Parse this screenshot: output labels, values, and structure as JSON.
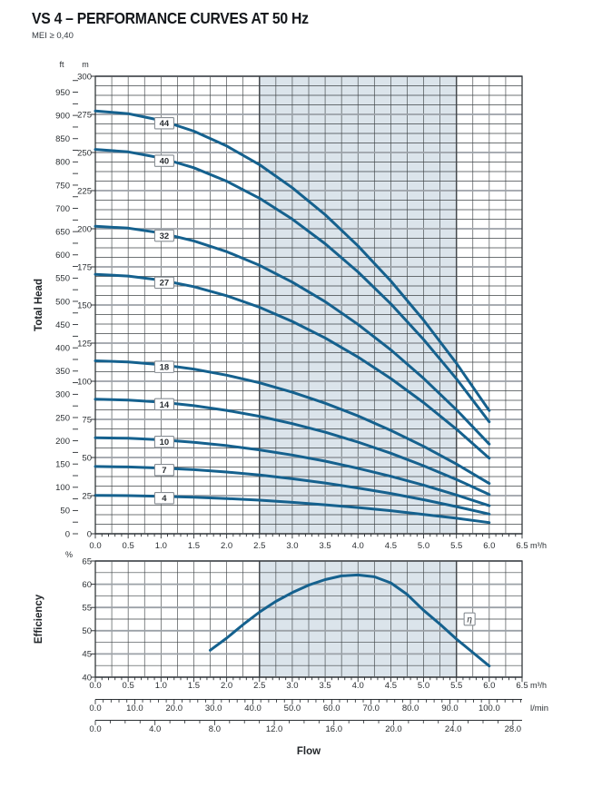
{
  "header": {
    "title": "VS 4 – PERFORMANCE CURVES AT 50 Hz",
    "subtitle": "MEI ≥ 0,40"
  },
  "labels": {
    "ft": "ft",
    "m": "m",
    "percent": "%",
    "total_head": "Total Head",
    "efficiency": "Efficiency",
    "flow": "Flow"
  },
  "colors": {
    "curve": "#15618e",
    "band": "#dbe4eb",
    "grid_minor": "#3f4447",
    "grid_major": "#9ba1a7",
    "band_edge": "#44484c",
    "border": "#34383b",
    "axis_text": "#2b2f33",
    "box_border": "#878d93"
  },
  "chart_data": [
    {
      "name": "total-head-curves",
      "type": "line",
      "ylabel": "Total Head",
      "x_axis": {
        "unit": "m³/h",
        "min": 0,
        "max": 6.5,
        "label_step": 0.5,
        "minor_tick_step": 0.1,
        "tick_labels": [
          "0.0",
          "0.5",
          "1.0",
          "1.5",
          "2.0",
          "2.5",
          "3.0",
          "3.5",
          "4.0",
          "4.5",
          "5.0",
          "5.5",
          "6.0",
          "6.5"
        ]
      },
      "y_axis_m": {
        "unit": "m",
        "min": 0,
        "max": 300,
        "major_step": 25,
        "minor_step": 6.25,
        "tick_labels": [
          0,
          25,
          50,
          75,
          100,
          125,
          150,
          175,
          200,
          225,
          250,
          275,
          300
        ]
      },
      "y_axis_ft": {
        "unit": "ft",
        "min": 0,
        "max": 975,
        "tick_step": 25,
        "label_step": 50,
        "tick_labels": [
          0,
          50,
          100,
          150,
          200,
          250,
          300,
          350,
          400,
          450,
          500,
          550,
          600,
          650,
          700,
          750,
          800,
          850,
          900,
          950
        ]
      },
      "recommended_range": {
        "from": 2.5,
        "to": 5.5
      },
      "curve_label_q": 1.05,
      "q": [
        0,
        0.5,
        1,
        1.5,
        2,
        2.5,
        3,
        3.5,
        4,
        4.5,
        5,
        5.5,
        6
      ],
      "series": [
        {
          "name": "44",
          "values": [
            277.2,
            275.5,
            271.1,
            264.0,
            254.3,
            242.0,
            226.9,
            209.2,
            188.8,
            165.8,
            140.1,
            111.8,
            80.8
          ]
        },
        {
          "name": "40",
          "values": [
            252.0,
            250.4,
            246.4,
            240.0,
            231.2,
            220.0,
            206.3,
            190.2,
            171.7,
            150.8,
            127.4,
            101.6,
            73.4
          ]
        },
        {
          "name": "32",
          "values": [
            201.6,
            200.4,
            197.2,
            192.0,
            185.0,
            176.0,
            165.0,
            152.2,
            137.3,
            120.6,
            101.9,
            81.3,
            58.8
          ]
        },
        {
          "name": "27",
          "values": [
            170.1,
            169.0,
            166.3,
            162.0,
            156.1,
            148.5,
            139.2,
            128.4,
            115.9,
            101.8,
            86.0,
            68.6,
            49.6
          ]
        },
        {
          "name": "18",
          "values": [
            113.4,
            112.7,
            110.9,
            108.0,
            104.0,
            99.0,
            92.8,
            85.6,
            77.3,
            67.8,
            57.3,
            45.7,
            33.0
          ]
        },
        {
          "name": "14",
          "values": [
            88.2,
            87.7,
            86.3,
            84.0,
            80.9,
            77.0,
            72.2,
            66.6,
            60.1,
            52.8,
            44.6,
            35.6,
            25.7
          ]
        },
        {
          "name": "10",
          "values": [
            63.0,
            62.6,
            61.6,
            60.0,
            57.8,
            55.0,
            51.6,
            47.6,
            42.9,
            37.7,
            31.9,
            25.4,
            18.4
          ]
        },
        {
          "name": "7",
          "values": [
            44.1,
            43.8,
            43.1,
            42.0,
            40.5,
            38.5,
            36.1,
            33.3,
            30.0,
            26.4,
            22.3,
            17.8,
            12.9
          ]
        },
        {
          "name": "4",
          "values": [
            25.2,
            25.0,
            24.6,
            24.0,
            23.1,
            22.0,
            20.6,
            19.0,
            17.2,
            15.1,
            12.7,
            10.2,
            7.3
          ]
        }
      ]
    },
    {
      "name": "efficiency-curve",
      "type": "line",
      "ylabel": "Efficiency",
      "x_axis": {
        "unit": "m³/h",
        "min": 0,
        "max": 6.5,
        "label_step": 0.5,
        "minor_tick_step": 0.1,
        "tick_labels": [
          "0.0",
          "0.5",
          "1.0",
          "1.5",
          "2.0",
          "2.5",
          "3.0",
          "3.5",
          "4.0",
          "4.5",
          "5.0",
          "5.5",
          "6.0",
          "6.5"
        ]
      },
      "y_axis": {
        "unit": "%",
        "min": 40,
        "max": 65,
        "major_step": 5,
        "minor_step": 2.5,
        "tick_labels": [
          40,
          45,
          50,
          55,
          60,
          65
        ]
      },
      "recommended_range": {
        "from": 2.5,
        "to": 5.5
      },
      "series": [
        {
          "name": "η",
          "x": [
            1.75,
            2,
            2.25,
            2.5,
            2.75,
            3,
            3.25,
            3.5,
            3.75,
            4,
            4.25,
            4.5,
            4.75,
            5,
            5.25,
            5.5,
            5.75,
            6
          ],
          "values": [
            45.8,
            48.4,
            51.3,
            54.0,
            56.3,
            58.2,
            59.8,
            61.0,
            61.8,
            62.0,
            61.6,
            60.3,
            57.8,
            54.4,
            51.4,
            48.2,
            45.3,
            42.4
          ],
          "label_pos": {
            "x": 5.7,
            "y": 52.5
          }
        }
      ]
    }
  ],
  "flow_scales": {
    "lmin": {
      "unit": "l/min",
      "per_m3h": 16.6667,
      "label_step": 10,
      "tick_step": 2,
      "max_tick": 108,
      "tick_labels": [
        "0.0",
        "10.0",
        "20.0",
        "30.0",
        "40.0",
        "50.0",
        "60.0",
        "70.0",
        "80.0",
        "90.0",
        "100.0"
      ]
    },
    "usgpm": {
      "per_m3h": 4.4029,
      "label_step": 4,
      "tick_step": 1,
      "max_tick": 28,
      "tick_labels": [
        "0.0",
        "4.0",
        "8.0",
        "12.0",
        "16.0",
        "20.0",
        "24.0",
        "28.0"
      ]
    },
    "axis_title": "Flow"
  }
}
